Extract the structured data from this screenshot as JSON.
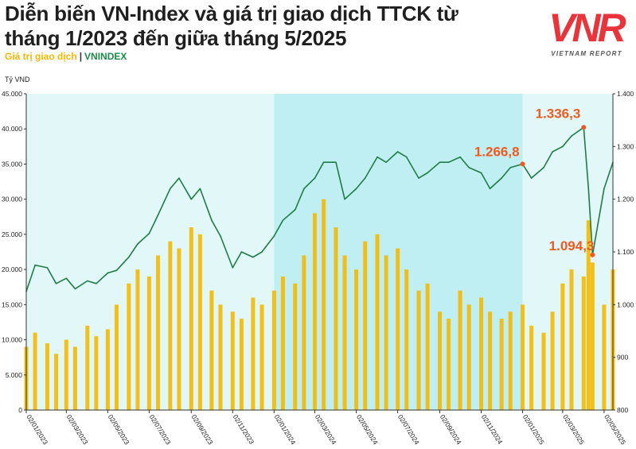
{
  "header": {
    "title": "Diễn biến VN-Index và giá trị giao dịch TTCK từ tháng 1/2023 đến giữa tháng 5/2025",
    "legend_value_label": "Giá trị giao dịch",
    "legend_separator": "|",
    "legend_index_label": "VNINDEX"
  },
  "logo": {
    "mark": "VNR",
    "subtitle": "VIETNAM REPORT"
  },
  "colors": {
    "bars": "#f5b800",
    "line": "#1e7d45",
    "bg_light": "#e2f7f7",
    "bg_dark": "#bfeff2",
    "annotation": "#f05a1e",
    "logo": "#e8343a"
  },
  "chart_data": {
    "type": "bar+line",
    "y_left_label": "Tỷ VND",
    "y_left_ticks": [
      "0",
      "5.000",
      "10.000",
      "15.000",
      "20.000",
      "25.000",
      "30.000",
      "35.000",
      "40.000",
      "45.000"
    ],
    "y_left_range": [
      0,
      45000
    ],
    "y_right_ticks": [
      "800",
      "900",
      "1.000",
      "1.100",
      "1.200",
      "1.300",
      "1.400"
    ],
    "y_right_range": [
      800,
      1400
    ],
    "x_ticks": [
      "02/01/2023",
      "02/03/2023",
      "02/05/2023",
      "02/07/2023",
      "02/09/2023",
      "02/11/2023",
      "02/01/2024",
      "02/03/2024",
      "02/05/2024",
      "02/07/2024",
      "02/09/2024",
      "02/11/2024",
      "02/01/2025",
      "02/03/2025",
      "02/05/2025"
    ],
    "shaded_periods": [
      {
        "from": "02/01/2023",
        "to": "02/01/2024",
        "shade": "light"
      },
      {
        "from": "02/01/2024",
        "to": "02/01/2025",
        "shade": "dark"
      },
      {
        "from": "02/01/2025",
        "to": "15/05/2025",
        "shade": "light"
      }
    ],
    "series": [
      {
        "name": "VNINDEX",
        "type": "line",
        "axis": "right",
        "x": [
          "02/01/2023",
          "15/01/2023",
          "02/02/2023",
          "15/02/2023",
          "02/03/2023",
          "15/03/2023",
          "02/04/2023",
          "15/04/2023",
          "02/05/2023",
          "15/05/2023",
          "02/06/2023",
          "15/06/2023",
          "02/07/2023",
          "15/07/2023",
          "02/08/2023",
          "15/08/2023",
          "02/09/2023",
          "15/09/2023",
          "02/10/2023",
          "15/10/2023",
          "02/11/2023",
          "15/11/2023",
          "02/12/2023",
          "15/12/2023",
          "02/01/2024",
          "15/01/2024",
          "02/02/2024",
          "15/02/2024",
          "02/03/2024",
          "15/03/2024",
          "02/04/2024",
          "15/04/2024",
          "02/05/2024",
          "15/05/2024",
          "02/06/2024",
          "15/06/2024",
          "02/07/2024",
          "15/07/2024",
          "02/08/2024",
          "15/08/2024",
          "02/09/2024",
          "15/09/2024",
          "02/10/2024",
          "15/10/2024",
          "02/11/2024",
          "15/11/2024",
          "02/12/2024",
          "15/12/2024",
          "02/01/2025",
          "15/01/2025",
          "02/02/2025",
          "15/02/2025",
          "02/03/2025",
          "15/03/2025",
          "02/04/2025",
          "09/04/2025",
          "15/04/2025",
          "02/05/2025",
          "15/05/2025"
        ],
        "values": [
          1025,
          1075,
          1070,
          1040,
          1050,
          1030,
          1045,
          1040,
          1060,
          1065,
          1090,
          1115,
          1135,
          1170,
          1220,
          1240,
          1200,
          1220,
          1160,
          1130,
          1070,
          1100,
          1090,
          1100,
          1130,
          1160,
          1180,
          1220,
          1240,
          1270,
          1270,
          1200,
          1220,
          1240,
          1280,
          1270,
          1290,
          1280,
          1240,
          1250,
          1270,
          1270,
          1280,
          1260,
          1250,
          1220,
          1240,
          1260,
          1266.8,
          1240,
          1260,
          1290,
          1300,
          1320,
          1336.3,
          1220,
          1094.3,
          1220,
          1270
        ]
      },
      {
        "name": "Giá trị giao dịch",
        "type": "bar",
        "axis": "left",
        "x": [
          "02/01/2023",
          "15/01/2023",
          "02/02/2023",
          "15/02/2023",
          "02/03/2023",
          "15/03/2023",
          "02/04/2023",
          "15/04/2023",
          "02/05/2023",
          "15/05/2023",
          "02/06/2023",
          "15/06/2023",
          "02/07/2023",
          "15/07/2023",
          "02/08/2023",
          "15/08/2023",
          "02/09/2023",
          "15/09/2023",
          "02/10/2023",
          "15/10/2023",
          "02/11/2023",
          "15/11/2023",
          "02/12/2023",
          "15/12/2023",
          "02/01/2024",
          "15/01/2024",
          "02/02/2024",
          "15/02/2024",
          "02/03/2024",
          "15/03/2024",
          "02/04/2024",
          "15/04/2024",
          "02/05/2024",
          "15/05/2024",
          "02/06/2024",
          "15/06/2024",
          "02/07/2024",
          "15/07/2024",
          "02/08/2024",
          "15/08/2024",
          "02/09/2024",
          "15/09/2024",
          "02/10/2024",
          "15/10/2024",
          "02/11/2024",
          "15/11/2024",
          "02/12/2024",
          "15/12/2024",
          "02/01/2025",
          "15/01/2025",
          "02/02/2025",
          "15/02/2025",
          "02/03/2025",
          "15/03/2025",
          "02/04/2025",
          "09/04/2025",
          "15/04/2025",
          "02/05/2025",
          "15/05/2025"
        ],
        "values": [
          9000,
          11000,
          9500,
          8000,
          10000,
          9000,
          12000,
          10500,
          11500,
          15000,
          18000,
          20000,
          19000,
          22000,
          24000,
          23000,
          26000,
          25000,
          17000,
          15000,
          14000,
          13000,
          16000,
          15000,
          17000,
          19000,
          18000,
          22000,
          28000,
          30000,
          26000,
          22000,
          20000,
          24000,
          25000,
          22000,
          23000,
          20000,
          17000,
          18000,
          14000,
          13000,
          17000,
          15000,
          16000,
          14000,
          13000,
          14000,
          15000,
          12000,
          11000,
          14000,
          18000,
          20000,
          19000,
          27000,
          21000,
          15000,
          20000
        ]
      }
    ],
    "annotations": [
      {
        "text": "1.266,8",
        "date": "02/01/2025",
        "value": 1266.8
      },
      {
        "text": "1.336,3",
        "date": "02/04/2025",
        "value": 1336.3
      },
      {
        "text": "1.094,3",
        "date": "15/04/2025",
        "value": 1094.3
      }
    ]
  }
}
